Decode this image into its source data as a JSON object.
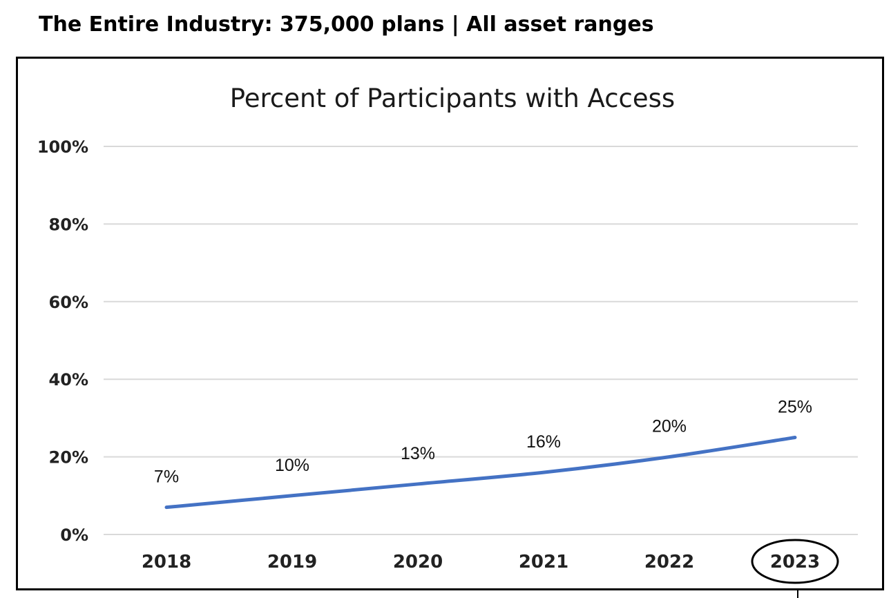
{
  "header": {
    "text": "The Entire Industry: 375,000 plans | All asset ranges"
  },
  "chart_data": {
    "type": "line",
    "title": "Percent of Participants with Access",
    "xlabel": "",
    "ylabel": "",
    "categories": [
      "2018",
      "2019",
      "2020",
      "2021",
      "2022",
      "2023"
    ],
    "series": [
      {
        "values": [
          7,
          10,
          13,
          16,
          20,
          25
        ],
        "color": "#4472c4"
      }
    ],
    "data_labels": [
      "7%",
      "10%",
      "13%",
      "16%",
      "20%",
      "25%"
    ],
    "yticks": [
      "0%",
      "20%",
      "40%",
      "60%",
      "80%",
      "100%"
    ],
    "ylim": [
      0,
      100
    ],
    "grid": true,
    "legend": "none",
    "highlighted_category": "2023"
  }
}
